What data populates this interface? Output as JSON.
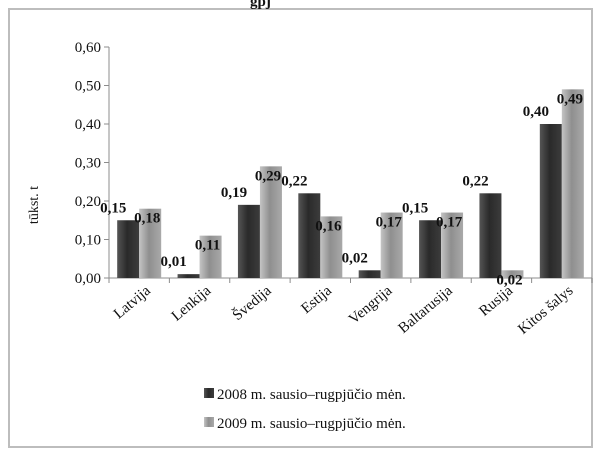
{
  "chart_data": {
    "type": "bar",
    "title_fragment": "gpj",
    "ylabel": "tūkst. t",
    "xlabel": "",
    "ylim": [
      0,
      0.6
    ],
    "yticks": [
      "0,00",
      "0,10",
      "0,20",
      "0,30",
      "0,40",
      "0,50",
      "0,60"
    ],
    "grid": false,
    "legend_position": "bottom",
    "categories": [
      "Latvija",
      "Lenkija",
      "Švedija",
      "Estija",
      "Vengrija",
      "Baltarusija",
      "Rusija",
      "Kitos šalys"
    ],
    "series": [
      {
        "name": "2008 m. sausio–rugpjūčio mėn.",
        "values": [
          0.15,
          0.01,
          0.19,
          0.22,
          0.02,
          0.15,
          0.22,
          0.4
        ],
        "labels": [
          "0,15",
          "0,01",
          "0,19",
          "0,22",
          "0,02",
          "0,15",
          "0,22",
          "0,40"
        ],
        "color": "#3a3a3a"
      },
      {
        "name": "2009 m. sausio–rugpjūčio mėn.",
        "values": [
          0.18,
          0.11,
          0.29,
          0.16,
          0.17,
          0.17,
          0.02,
          0.49
        ],
        "labels": [
          "0,18",
          "0,11",
          "0,29",
          "0,16",
          "0,17",
          "0,17",
          "0,02",
          "0,49"
        ],
        "color": "#9a9a9a"
      }
    ]
  }
}
